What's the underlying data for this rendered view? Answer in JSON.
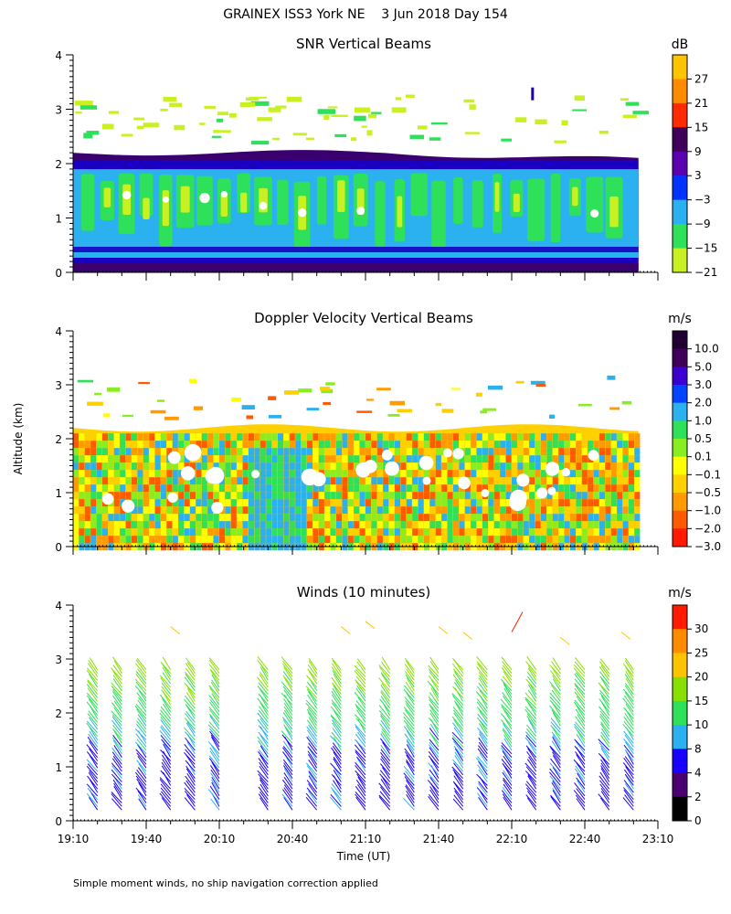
{
  "figure": {
    "title": "GRAINEX ISS3 York NE    3 Jun 2018 Day 154",
    "ylabel": "Altitude (km)",
    "xlabel": "Time (UT)",
    "footnote": "Simple moment winds, no ship navigation correction applied"
  },
  "chart_data": [
    {
      "type": "heatmap",
      "title": "SNR Vertical Beams",
      "colorbar_unit": "dB",
      "colorbar_ticks": [
        "27",
        "21",
        "15",
        "9",
        "3",
        "−3",
        "−9",
        "−15",
        "−21"
      ],
      "colors": [
        "#ffc400",
        "#ff8c00",
        "#ff2a00",
        "#40005a",
        "#5a00b0",
        "#0033ff",
        "#2bb0f0",
        "#2ee05a",
        "#c8f023"
      ],
      "y_ticks": [
        "0",
        "1",
        "2",
        "3",
        "4"
      ],
      "ylim": [
        0,
        4
      ],
      "xlim": [
        "19:10",
        "23:10"
      ],
      "noise_top_km": 2.2,
      "layer_colors": {
        "bottom_band": "#1a00c0",
        "shell": "#3a0070",
        "mid": "#2bb0f0",
        "core": "#2ee05a",
        "clear": "#c8f023"
      }
    },
    {
      "type": "heatmap",
      "title": "Doppler Velocity Vertical Beams",
      "colorbar_unit": "m/s",
      "colorbar_ticks": [
        "10.0",
        "5.0",
        "3.0",
        "2.0",
        "1.0",
        "0.5",
        "0.1",
        "−0.1",
        "−0.5",
        "−1.0",
        "−2.0",
        "−3.0"
      ],
      "colors": [
        "#200030",
        "#40005a",
        "#3a00d0",
        "#0044ff",
        "#2bb0f0",
        "#2ee05a",
        "#88ee22",
        "#ffff00",
        "#ffd000",
        "#ff9a00",
        "#ff5a00",
        "#ff1a00"
      ],
      "y_ticks": [
        "0",
        "1",
        "2",
        "3",
        "4"
      ],
      "ylim": [
        0,
        4
      ],
      "xlim": [
        "19:10",
        "23:10"
      ]
    },
    {
      "type": "scatter",
      "title": "Winds (10 minutes)",
      "colorbar_unit": "m/s",
      "colorbar_ticks": [
        "30",
        "25",
        "20",
        "15",
        "10",
        "8",
        "4",
        "2",
        "0"
      ],
      "colors": [
        "#ff1a00",
        "#ff8c00",
        "#ffc400",
        "#88e000",
        "#2ee05a",
        "#2bb0f0",
        "#1a00ff",
        "#4a0070",
        "#000000"
      ],
      "y_ticks": [
        "0",
        "1",
        "2",
        "3",
        "4"
      ],
      "ylim": [
        0,
        4
      ],
      "xlim": [
        "19:10",
        "23:10"
      ],
      "x_tick_labels": [
        "19:10",
        "19:40",
        "20:10",
        "20:40",
        "21:10",
        "21:40",
        "22:10",
        "22:40",
        "23:10"
      ],
      "profile_times_min": [
        10,
        20,
        30,
        40,
        50,
        60,
        80,
        90,
        100,
        110,
        120,
        130,
        140,
        150,
        160,
        170,
        180,
        190,
        200,
        210,
        220,
        230
      ],
      "upper_speed_ms": 20,
      "outlier": {
        "time_min": 180,
        "alt_km": 3.5,
        "speed_ms": 30
      }
    }
  ]
}
